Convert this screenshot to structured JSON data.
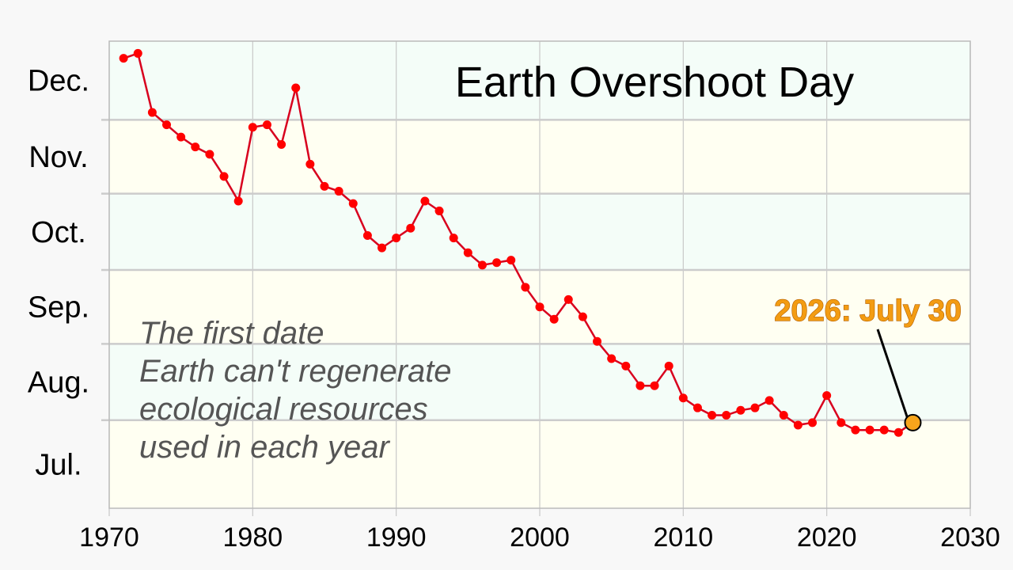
{
  "chart_data": {
    "type": "line",
    "title": "Earth Overshoot Day",
    "annotation_lines": [
      "The first date",
      "Earth can't regenerate",
      "ecological resources",
      "used in each year"
    ],
    "highlight": {
      "label": "2026: July 30",
      "x": 2026,
      "y": "2026-07-30"
    },
    "x_ticks": [
      "1970",
      "1980",
      "1990",
      "2000",
      "2010",
      "2020",
      "2030"
    ],
    "xlim": [
      1970,
      2030
    ],
    "y_month_labels": [
      "Dec.",
      "Nov.",
      "Oct.",
      "Sep.",
      "Aug.",
      "Jul."
    ],
    "ylim": [
      "07-01",
      "12-31"
    ],
    "grid": true,
    "colors": {
      "line": "#d8001e",
      "point": "#ff0000",
      "highlight_point": "#f7a51c",
      "band_light_green": "#f4fdf8",
      "band_light_yellow": "#fffff2"
    },
    "series": [
      {
        "x": [
          1971,
          1972,
          1973,
          1974,
          1975,
          1976,
          1977,
          1978,
          1979,
          1980,
          1981,
          1982,
          1983,
          1984,
          1985,
          1986,
          1987,
          1988,
          1989,
          1990,
          1991,
          1992,
          1993,
          1994,
          1995,
          1996,
          1997,
          1998,
          1999,
          2000,
          2001,
          2002,
          2003,
          2004,
          2005,
          2006,
          2007,
          2008,
          2009,
          2010,
          2011,
          2012,
          2013,
          2014,
          2015,
          2016,
          2017,
          2018,
          2019,
          2020,
          2021,
          2022,
          2023,
          2024,
          2025,
          2026
        ],
        "y": [
          "12-25",
          "12-27",
          "12-03",
          "11-28",
          "11-23",
          "11-19",
          "11-16",
          "11-07",
          "10-28",
          "11-27",
          "11-28",
          "11-20",
          "12-13",
          "11-12",
          "11-03",
          "11-01",
          "10-27",
          "10-14",
          "10-09",
          "10-13",
          "10-17",
          "10-28",
          "10-24",
          "10-13",
          "10-07",
          "10-02",
          "10-03",
          "10-04",
          "09-23",
          "09-15",
          "09-10",
          "09-18",
          "09-11",
          "09-01",
          "08-25",
          "08-22",
          "08-14",
          "08-14",
          "08-22",
          "08-09",
          "08-05",
          "08-02",
          "08-02",
          "08-04",
          "08-05",
          "08-08",
          "08-02",
          "07-29",
          "07-30",
          "08-10",
          "07-30",
          "07-27",
          "07-27",
          "07-27",
          "07-26",
          "07-30"
        ]
      }
    ]
  }
}
